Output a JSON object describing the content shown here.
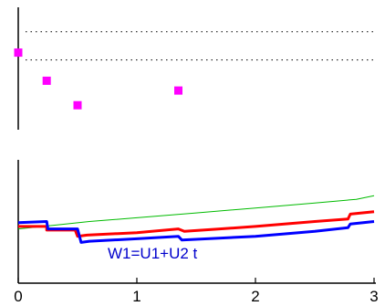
{
  "chart_data": [
    {
      "type": "scatter",
      "title": "",
      "xlabel": "",
      "ylabel": "",
      "xlim": [
        0,
        3
      ],
      "ylim": [
        0,
        1
      ],
      "grid": false,
      "reference_lines": [
        {
          "y": 0.8,
          "style": "dotted",
          "color": "#000000"
        },
        {
          "y": 0.57,
          "style": "dotted",
          "color": "#000000"
        }
      ],
      "series": [
        {
          "color": "#ff00ff",
          "marker": "square",
          "points": [
            {
              "x": 0.0,
              "y": 0.63
            },
            {
              "x": 0.24,
              "y": 0.4
            },
            {
              "x": 0.5,
              "y": 0.2
            },
            {
              "x": 1.35,
              "y": 0.32
            }
          ]
        }
      ]
    },
    {
      "type": "line",
      "title": "",
      "xlabel": "",
      "ylabel": "",
      "xlim": [
        0,
        3
      ],
      "ylim": [
        0,
        1
      ],
      "grid": false,
      "x_ticks": [
        "0",
        "1",
        "2",
        "3"
      ],
      "annotation": {
        "text": "W1=U1+U2 t",
        "color": "#0000cc"
      },
      "series": [
        {
          "color": "#00bb00",
          "width": 1,
          "points": [
            [
              0.0,
              0.44
            ],
            [
              0.3,
              0.47
            ],
            [
              0.6,
              0.5
            ],
            [
              1.0,
              0.53
            ],
            [
              1.5,
              0.57
            ],
            [
              2.0,
              0.61
            ],
            [
              2.5,
              0.65
            ],
            [
              2.85,
              0.68
            ],
            [
              3.0,
              0.71
            ]
          ]
        },
        {
          "color": "#ff0000",
          "width": 3,
          "points": [
            [
              0.0,
              0.46
            ],
            [
              0.24,
              0.46
            ],
            [
              0.24,
              0.43
            ],
            [
              0.48,
              0.43
            ],
            [
              0.5,
              0.38
            ],
            [
              0.58,
              0.39
            ],
            [
              1.0,
              0.41
            ],
            [
              1.35,
              0.44
            ],
            [
              1.4,
              0.42
            ],
            [
              1.7,
              0.44
            ],
            [
              2.0,
              0.46
            ],
            [
              2.5,
              0.5
            ],
            [
              2.78,
              0.52
            ],
            [
              2.8,
              0.56
            ],
            [
              3.0,
              0.58
            ]
          ]
        },
        {
          "color": "#0000ff",
          "width": 3,
          "points": [
            [
              0.0,
              0.49
            ],
            [
              0.24,
              0.5
            ],
            [
              0.25,
              0.44
            ],
            [
              0.5,
              0.44
            ],
            [
              0.53,
              0.33
            ],
            [
              0.6,
              0.34
            ],
            [
              1.0,
              0.36
            ],
            [
              1.35,
              0.38
            ],
            [
              1.38,
              0.35
            ],
            [
              2.0,
              0.38
            ],
            [
              2.5,
              0.42
            ],
            [
              2.78,
              0.45
            ],
            [
              2.8,
              0.48
            ],
            [
              3.0,
              0.5
            ]
          ]
        }
      ]
    }
  ]
}
